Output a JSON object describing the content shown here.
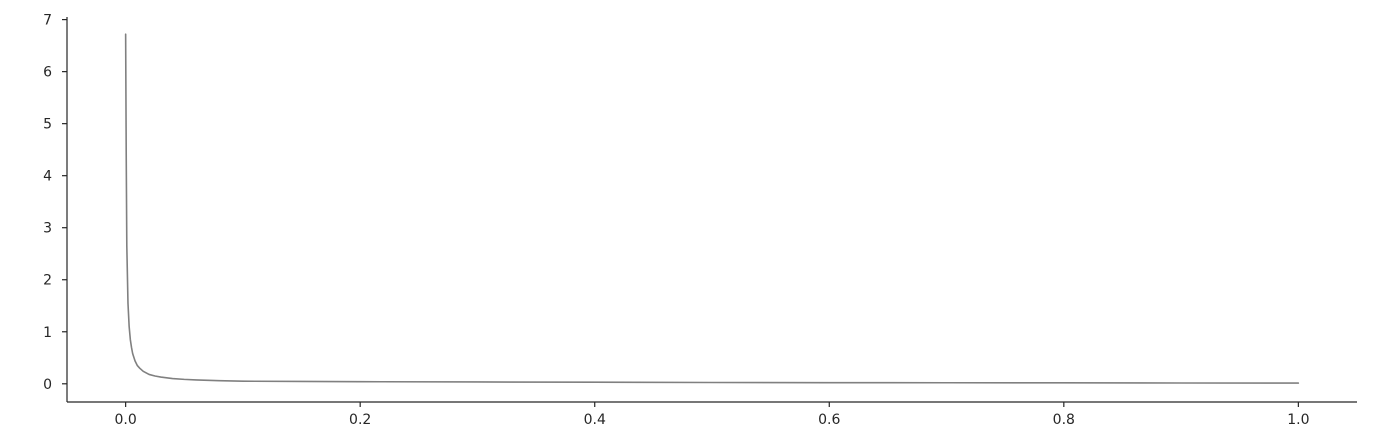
{
  "chart_data": {
    "type": "line",
    "title": "",
    "xlabel": "",
    "ylabel": "",
    "xlim": [
      -0.05,
      1.05
    ],
    "ylim": [
      -0.35,
      7.05
    ],
    "xticks": [
      0.0,
      0.2,
      0.4,
      0.6,
      0.8,
      1.0
    ],
    "xtick_labels": [
      "0.0",
      "0.2",
      "0.4",
      "0.6",
      "0.8",
      "1.0"
    ],
    "yticks": [
      0,
      1,
      2,
      3,
      4,
      5,
      6,
      7
    ],
    "ytick_labels": [
      "0",
      "1",
      "2",
      "3",
      "4",
      "5",
      "6",
      "7"
    ],
    "grid": false,
    "spines": [
      "left",
      "bottom"
    ],
    "series": [
      {
        "color": "#808080",
        "x": [
          0.0,
          0.0005,
          0.001,
          0.002,
          0.003,
          0.004,
          0.005,
          0.006,
          0.008,
          0.01,
          0.012,
          0.015,
          0.02,
          0.025,
          0.03,
          0.04,
          0.05,
          0.06,
          0.08,
          0.1,
          0.15,
          0.2,
          0.3,
          0.4,
          0.5,
          0.6,
          0.7,
          0.8,
          0.9,
          1.0
        ],
        "y": [
          6.72,
          4.4,
          2.65,
          1.55,
          1.1,
          0.85,
          0.7,
          0.58,
          0.44,
          0.35,
          0.3,
          0.24,
          0.18,
          0.15,
          0.13,
          0.1,
          0.085,
          0.075,
          0.06,
          0.05,
          0.045,
          0.04,
          0.035,
          0.03,
          0.025,
          0.022,
          0.02,
          0.018,
          0.015,
          0.013
        ]
      }
    ]
  }
}
